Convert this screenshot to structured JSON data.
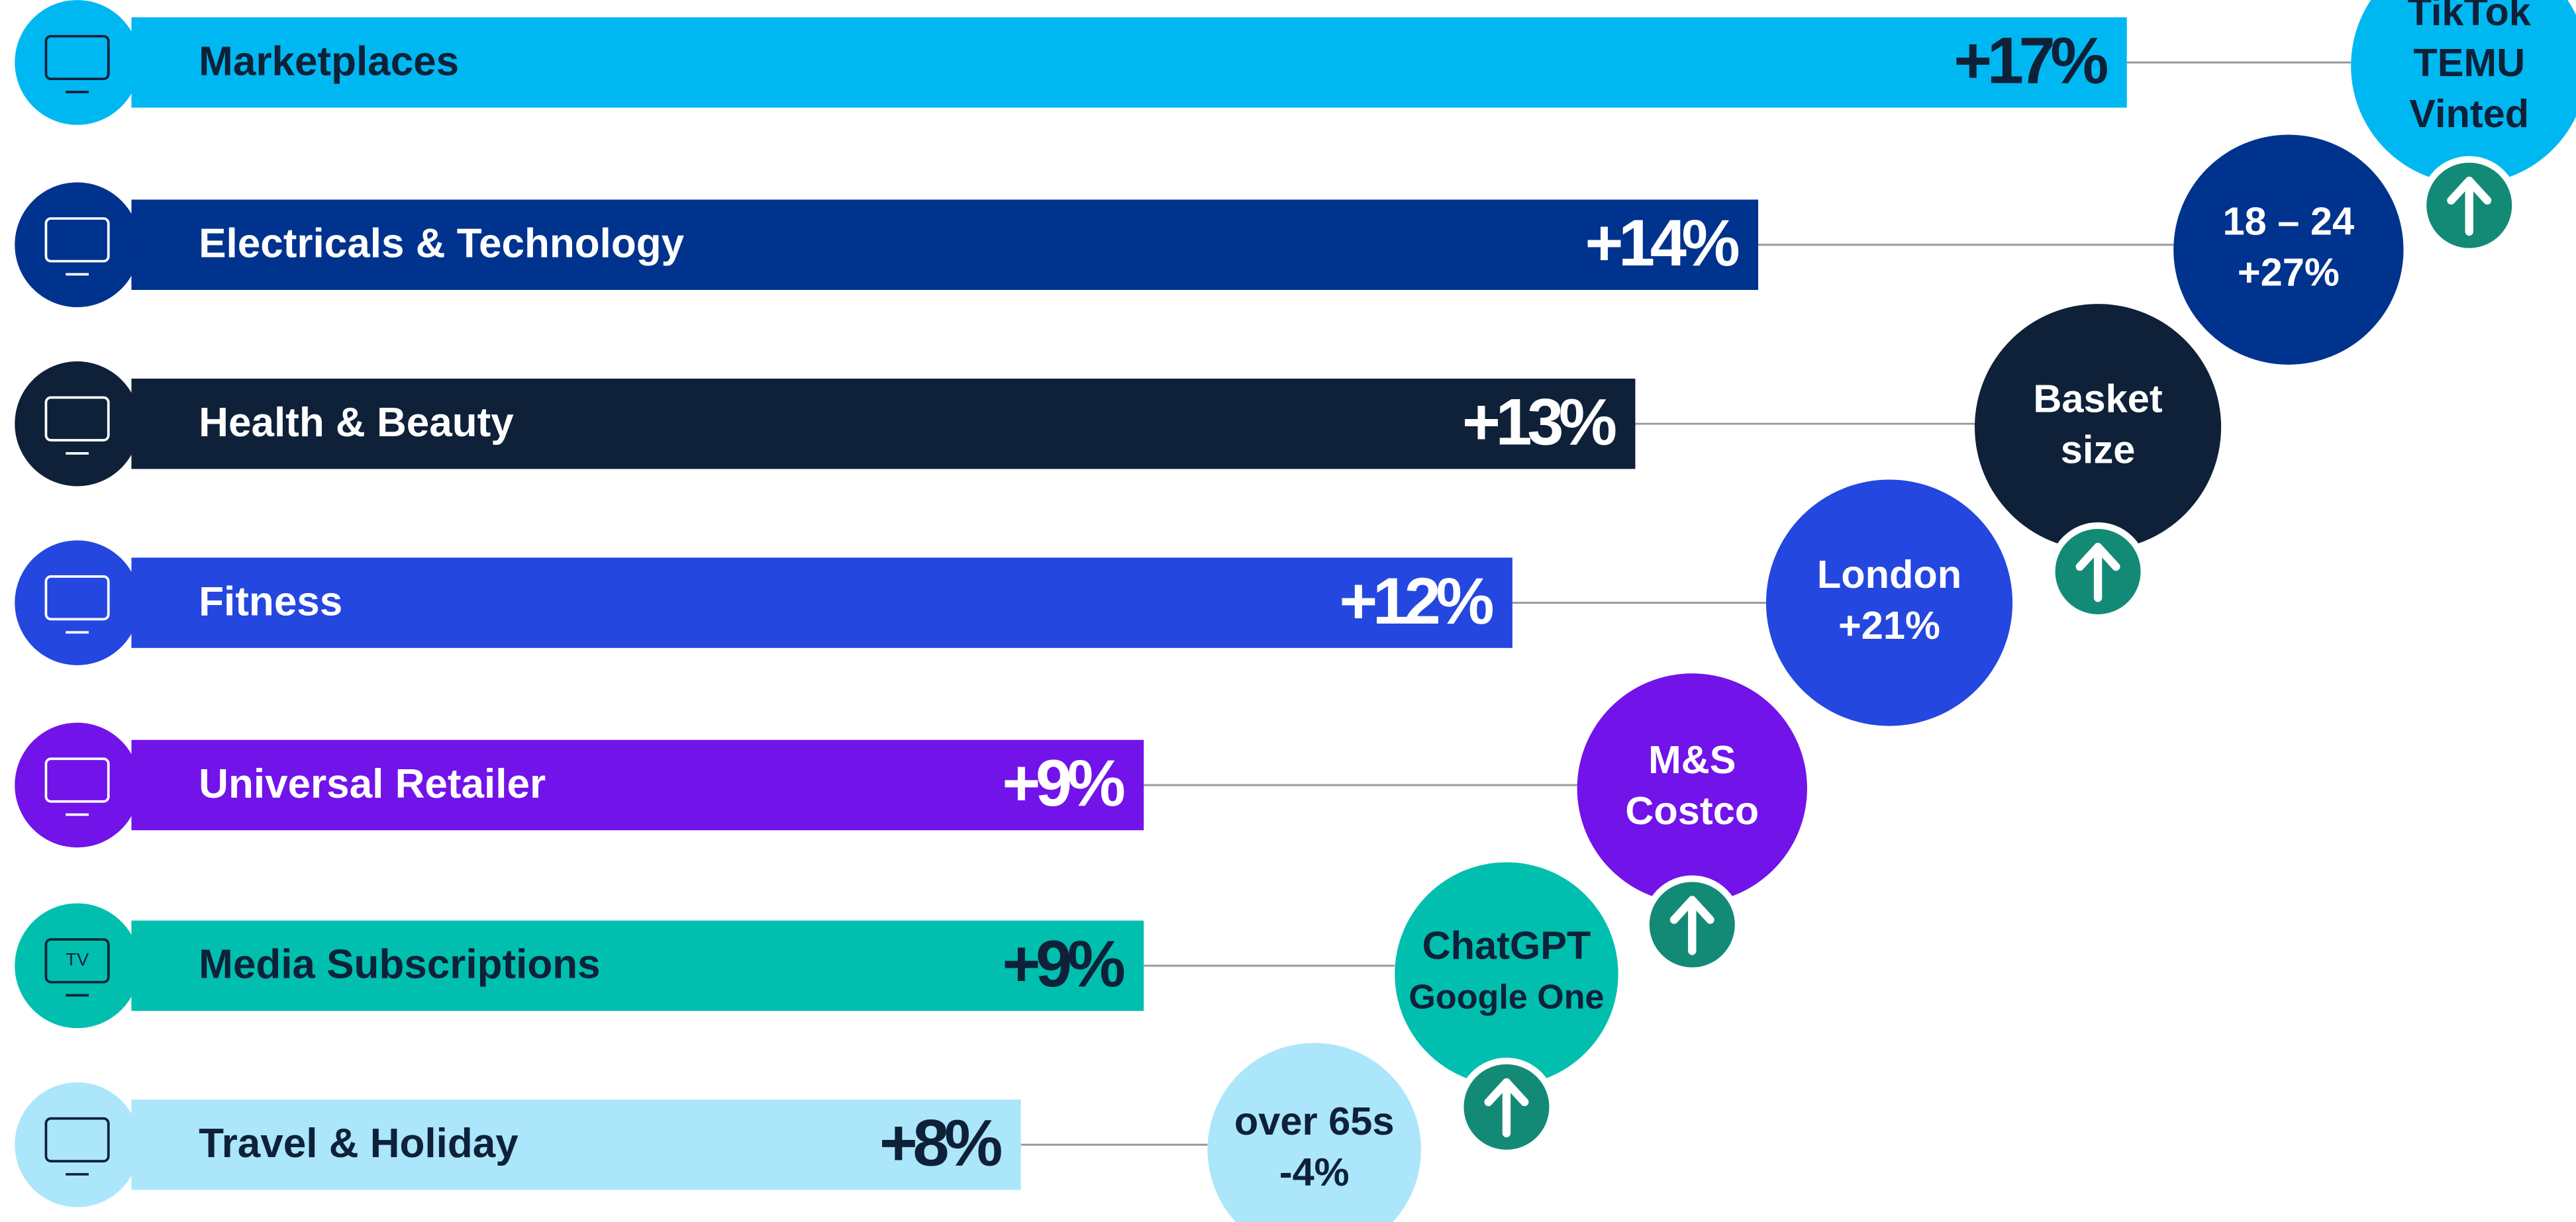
{
  "chart_data": {
    "type": "bar",
    "orientation": "horizontal",
    "categories": [
      "Marketplaces",
      "Electricals & Technology",
      "Health & Beauty",
      "Fitness",
      "Universal Retailer",
      "Media Subscriptions",
      "Travel & Holiday"
    ],
    "values": [
      17,
      14,
      13,
      12,
      9,
      9,
      8
    ],
    "value_labels": [
      "+17%",
      "+14%",
      "+13%",
      "+12%",
      "+9%",
      "+9%",
      "+8%"
    ],
    "colors": [
      "#00b8f1",
      "#00338d",
      "#0e2139",
      "#2447e0",
      "#7213ea",
      "#00bfae",
      "#abe6fb"
    ],
    "text_colors": [
      "#0e2139",
      "#ffffff",
      "#ffffff",
      "#ffffff",
      "#ffffff",
      "#0e2139",
      "#0e2139"
    ],
    "annotations": [
      {
        "lines": [
          "TikTok",
          "TEMU",
          "Vinted"
        ],
        "arrow": true
      },
      {
        "lines": [
          "18 – 24",
          "+27%"
        ],
        "arrow": false
      },
      {
        "lines": [
          "Basket",
          "size"
        ],
        "arrow": true
      },
      {
        "lines": [
          "London",
          "+21%"
        ],
        "arrow": false
      },
      {
        "lines": [
          "M&S",
          "Costco"
        ],
        "arrow": true
      },
      {
        "lines": [
          "ChatGPT",
          "Google One"
        ],
        "arrow": true
      },
      {
        "lines": [
          "over 65s",
          "-4%"
        ],
        "arrow": false
      }
    ],
    "tv_icon_label": "TV"
  }
}
